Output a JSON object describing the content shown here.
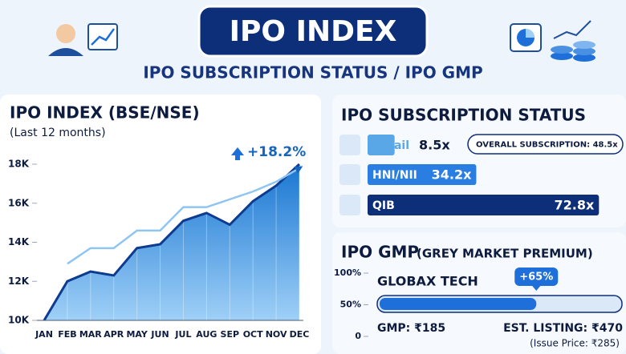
{
  "header": {
    "title": "IPO INDEX",
    "subtitle": "IPO SUBSCRIPTION STATUS / IPO GMP"
  },
  "chart_data": [
    {
      "type": "area",
      "title": "IPO INDEX (BSE/NSE)",
      "subtitle": "(Last 12 months)",
      "annotation": "+18.2%",
      "categories": [
        "JAN",
        "FEB",
        "MAR",
        "APR",
        "MAY",
        "JUN",
        "JUL",
        "AUG",
        "SEP",
        "OCT",
        "NOV",
        "DEC"
      ],
      "series": [
        {
          "color": "#1565c0",
          "values": [
            10000,
            12000,
            12500,
            12300,
            13700,
            13900,
            15100,
            15500,
            14900,
            16100,
            16900,
            18000
          ]
        },
        {
          "color": "#8ec5f2",
          "values": [
            null,
            12900,
            13700,
            13700,
            14600,
            14600,
            15800,
            15800,
            16200,
            16600,
            17100,
            17800
          ]
        }
      ],
      "ylim": [
        10000,
        18000
      ],
      "yticks": [
        {
          "value": 10000,
          "label": "10K"
        },
        {
          "value": 12000,
          "label": "12K"
        },
        {
          "value": 14000,
          "label": "14K"
        },
        {
          "value": 16000,
          "label": "16K"
        },
        {
          "value": 18000,
          "label": "18K"
        }
      ]
    },
    {
      "type": "hbar",
      "title": "IPO SUBSCRIPTION STATUS",
      "note": "OVERALL SUBSCRIPTION: 48.5x",
      "categories": [
        "Retail",
        "HNI/NII",
        "QIB"
      ],
      "values": [
        8.5,
        34.2,
        72.8
      ],
      "value_labels": [
        "8.5x",
        "34.2x",
        "72.8x"
      ],
      "colors": [
        "#5aa7e8",
        "#2a7de1",
        "#0d2f7a"
      ],
      "xlim": [
        0,
        75
      ]
    },
    {
      "type": "progress",
      "title": "IPO GMP",
      "subtitle": "(GREY MARKET PREMIUM)",
      "category": "GLOBAX TECH",
      "value": 65,
      "value_label": "+65%",
      "color": "#1e6fd9",
      "ylim": [
        0,
        100
      ],
      "yticks": [
        0,
        {
          "value": 50,
          "label": "50%"
        },
        {
          "value": 100,
          "label": "100%"
        }
      ],
      "notes": [
        "GMP: ₹185",
        "EST. LISTING: ₹470",
        "(Issue Price: ₹285)"
      ]
    }
  ]
}
